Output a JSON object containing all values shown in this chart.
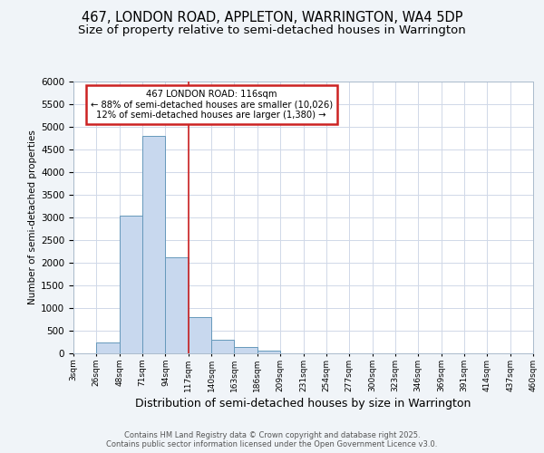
{
  "title1": "467, LONDON ROAD, APPLETON, WARRINGTON, WA4 5DP",
  "title2": "Size of property relative to semi-detached houses in Warrington",
  "xlabel": "Distribution of semi-detached houses by size in Warrington",
  "ylabel": "Number of semi-detached properties",
  "bin_labels": [
    "3sqm",
    "26sqm",
    "48sqm",
    "71sqm",
    "94sqm",
    "117sqm",
    "140sqm",
    "163sqm",
    "186sqm",
    "209sqm",
    "231sqm",
    "254sqm",
    "277sqm",
    "300sqm",
    "323sqm",
    "346sqm",
    "369sqm",
    "391sqm",
    "414sqm",
    "437sqm",
    "460sqm"
  ],
  "bar_values": [
    0,
    250,
    3050,
    4800,
    2130,
    800,
    310,
    150,
    70,
    0,
    0,
    0,
    0,
    0,
    0,
    0,
    0,
    0,
    0,
    0
  ],
  "bar_color": "#c8d8ee",
  "bar_edge_color": "#6699bb",
  "annotation_title": "467 LONDON ROAD: 116sqm",
  "annotation_line1": "← 88% of semi-detached houses are smaller (10,026)",
  "annotation_line2": "12% of semi-detached houses are larger (1,380) →",
  "vline_color": "#cc2222",
  "annotation_box_edgecolor": "#cc2222",
  "ylim": [
    0,
    6000
  ],
  "yticks": [
    0,
    500,
    1000,
    1500,
    2000,
    2500,
    3000,
    3500,
    4000,
    4500,
    5000,
    5500,
    6000
  ],
  "footer1": "Contains HM Land Registry data © Crown copyright and database right 2025.",
  "footer2": "Contains public sector information licensed under the Open Government Licence v3.0.",
  "bg_color": "#f0f4f8",
  "plot_bg_color": "#ffffff",
  "grid_color": "#d0d8e8",
  "title1_fontsize": 10.5,
  "title2_fontsize": 9.5
}
